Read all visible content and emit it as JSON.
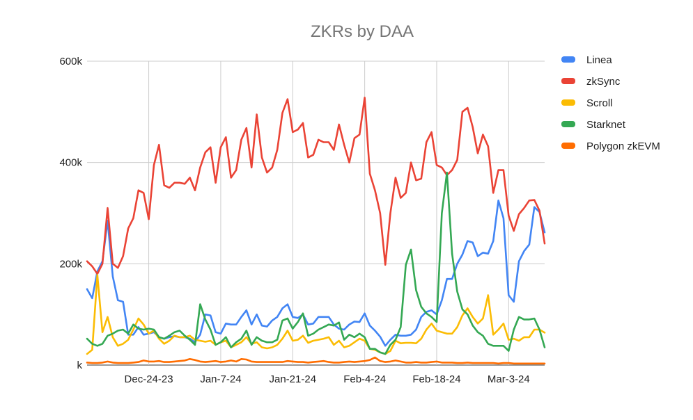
{
  "chart_data": {
    "type": "line",
    "title": "ZKRs by DAA",
    "xlabel": "",
    "ylabel": "",
    "ylim": [
      0,
      600000
    ],
    "y_ticks": [
      {
        "value": 0,
        "label": "k"
      },
      {
        "value": 200000,
        "label": "200k"
      },
      {
        "value": 400000,
        "label": "400k"
      },
      {
        "value": 600000,
        "label": "600k"
      }
    ],
    "x_ticks": [
      {
        "index": 12,
        "label": "Dec-24-23"
      },
      {
        "index": 26,
        "label": "Jan-7-24"
      },
      {
        "index": 40,
        "label": "Jan-21-24"
      },
      {
        "index": 54,
        "label": "Feb-4-24"
      },
      {
        "index": 68,
        "label": "Feb-18-24"
      },
      {
        "index": 82,
        "label": "Mar-3-24"
      }
    ],
    "grid": "vertical",
    "legend_position": "right",
    "series": [
      {
        "name": "Linea",
        "color": "#4285f4",
        "values": [
          150000,
          132000,
          185000,
          205000,
          285000,
          175000,
          128000,
          125000,
          60000,
          60000,
          75000,
          60000,
          62000,
          65000,
          55000,
          52000,
          55000,
          57000,
          55000,
          55000,
          52000,
          45000,
          60000,
          100000,
          98000,
          65000,
          62000,
          82000,
          80000,
          80000,
          95000,
          108000,
          80000,
          100000,
          78000,
          76000,
          88000,
          95000,
          112000,
          120000,
          95000,
          93000,
          100000,
          80000,
          82000,
          95000,
          95000,
          95000,
          80000,
          72000,
          70000,
          80000,
          86000,
          85000,
          102000,
          78000,
          68000,
          56000,
          38000,
          50000,
          60000,
          58000,
          58000,
          60000,
          70000,
          95000,
          105000,
          108000,
          100000,
          128000,
          170000,
          170000,
          200000,
          218000,
          245000,
          242000,
          215000,
          222000,
          220000,
          245000,
          325000,
          290000,
          138000,
          125000,
          205000,
          225000,
          238000,
          312000,
          302000,
          262000
        ]
      },
      {
        "name": "zkSync",
        "color": "#ea4335",
        "values": [
          205000,
          195000,
          180000,
          200000,
          310000,
          200000,
          192000,
          215000,
          270000,
          290000,
          345000,
          340000,
          288000,
          395000,
          435000,
          355000,
          350000,
          360000,
          360000,
          358000,
          370000,
          345000,
          390000,
          420000,
          430000,
          360000,
          430000,
          450000,
          370000,
          385000,
          445000,
          468000,
          390000,
          495000,
          410000,
          380000,
          390000,
          425000,
          498000,
          525000,
          460000,
          465000,
          478000,
          410000,
          415000,
          445000,
          440000,
          440000,
          425000,
          475000,
          435000,
          400000,
          448000,
          455000,
          528000,
          378000,
          345000,
          300000,
          198000,
          300000,
          370000,
          330000,
          340000,
          400000,
          365000,
          368000,
          440000,
          460000,
          395000,
          390000,
          375000,
          385000,
          405000,
          500000,
          508000,
          470000,
          418000,
          455000,
          432000,
          340000,
          385000,
          385000,
          295000,
          265000,
          298000,
          310000,
          325000,
          326000,
          305000,
          240000
        ]
      },
      {
        "name": "Scroll",
        "color": "#fbbc04",
        "values": [
          22000,
          30000,
          178000,
          65000,
          95000,
          55000,
          38000,
          42000,
          50000,
          70000,
          92000,
          80000,
          62000,
          68000,
          52000,
          42000,
          48000,
          58000,
          55000,
          55000,
          58000,
          50000,
          48000,
          46000,
          48000,
          40000,
          45000,
          48000,
          35000,
          40000,
          45000,
          55000,
          42000,
          45000,
          35000,
          33000,
          35000,
          40000,
          52000,
          68000,
          48000,
          50000,
          58000,
          44000,
          48000,
          50000,
          52000,
          55000,
          40000,
          48000,
          35000,
          38000,
          45000,
          52000,
          48000,
          32000,
          30000,
          25000,
          22000,
          28000,
          48000,
          43000,
          44000,
          44000,
          43000,
          52000,
          70000,
          82000,
          68000,
          65000,
          62000,
          62000,
          75000,
          98000,
          112000,
          95000,
          82000,
          92000,
          138000,
          60000,
          70000,
          82000,
          50000,
          52000,
          48000,
          55000,
          55000,
          70000,
          70000,
          64000
        ]
      },
      {
        "name": "Starknet",
        "color": "#34a853",
        "values": [
          52000,
          42000,
          38000,
          42000,
          58000,
          62000,
          68000,
          70000,
          62000,
          80000,
          72000,
          70000,
          72000,
          70000,
          55000,
          52000,
          58000,
          65000,
          68000,
          58000,
          50000,
          40000,
          120000,
          90000,
          70000,
          40000,
          45000,
          55000,
          35000,
          45000,
          52000,
          68000,
          40000,
          55000,
          48000,
          45000,
          45000,
          50000,
          88000,
          92000,
          72000,
          85000,
          102000,
          58000,
          62000,
          70000,
          75000,
          80000,
          78000,
          84000,
          50000,
          60000,
          55000,
          62000,
          55000,
          32000,
          32000,
          25000,
          22000,
          40000,
          50000,
          75000,
          198000,
          228000,
          148000,
          115000,
          102000,
          95000,
          85000,
          300000,
          380000,
          220000,
          145000,
          110000,
          100000,
          78000,
          65000,
          58000,
          42000,
          38000,
          38000,
          38000,
          28000,
          70000,
          95000,
          90000,
          90000,
          92000,
          70000,
          35000
        ]
      },
      {
        "name": "Polygon zkEVM",
        "color": "#ff6d01",
        "values": [
          5000,
          4000,
          4000,
          5000,
          7000,
          5000,
          4000,
          4000,
          4000,
          5000,
          6000,
          9000,
          7000,
          7000,
          8000,
          6000,
          6000,
          7000,
          8000,
          9000,
          12000,
          10000,
          7000,
          6000,
          7000,
          8000,
          6000,
          7000,
          9000,
          7000,
          12000,
          11000,
          7000,
          6000,
          6000,
          6000,
          6000,
          6000,
          6000,
          8000,
          7000,
          6000,
          6000,
          5000,
          6000,
          7000,
          8000,
          6000,
          5000,
          5000,
          6000,
          7000,
          6000,
          7000,
          8000,
          10000,
          15000,
          8000,
          6000,
          7000,
          9000,
          7000,
          5000,
          5000,
          6000,
          5000,
          5000,
          6000,
          7000,
          5000,
          5000,
          5000,
          4000,
          4000,
          5000,
          4000,
          4000,
          4000,
          4000,
          4000,
          3000,
          4000,
          4000,
          3000,
          3000,
          3000,
          3000,
          3000,
          3000,
          3000
        ]
      }
    ]
  }
}
